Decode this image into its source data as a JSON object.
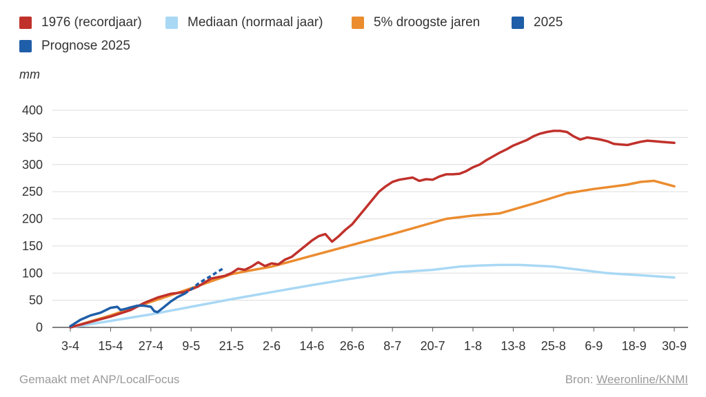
{
  "legend": [
    {
      "label": "1976 (recordjaar)",
      "color": "#c0312b"
    },
    {
      "label": "Mediaan (normaal jaar)",
      "color": "#a9d8f5"
    },
    {
      "label": "5% droogste jaren",
      "color": "#eb8c2f"
    },
    {
      "label": "2025",
      "color": "#1f5ea8"
    },
    {
      "label": "Prognose 2025",
      "color": "#1f5ea8"
    }
  ],
  "unit_label": "mm",
  "footer": {
    "made_with": "Gemaakt met ANP/LocalFocus",
    "source_prefix": "Bron:",
    "source_link": "Weeronline/KNMI"
  },
  "chart_data": {
    "type": "line",
    "title": "",
    "xlabel": "",
    "ylabel": "mm",
    "ylim": [
      0,
      400
    ],
    "yticks": [
      0,
      50,
      100,
      150,
      200,
      250,
      300,
      350,
      400
    ],
    "xlim": [
      0,
      180
    ],
    "xticks": [
      {
        "label": "3-4",
        "day": 0
      },
      {
        "label": "15-4",
        "day": 12
      },
      {
        "label": "27-4",
        "day": 24
      },
      {
        "label": "9-5",
        "day": 36
      },
      {
        "label": "21-5",
        "day": 48
      },
      {
        "label": "2-6",
        "day": 60
      },
      {
        "label": "14-6",
        "day": 72
      },
      {
        "label": "26-6",
        "day": 84
      },
      {
        "label": "8-7",
        "day": 96
      },
      {
        "label": "20-7",
        "day": 108
      },
      {
        "label": "1-8",
        "day": 120
      },
      {
        "label": "13-8",
        "day": 132
      },
      {
        "label": "25-8",
        "day": 144
      },
      {
        "label": "6-9",
        "day": 156
      },
      {
        "label": "18-9",
        "day": 168
      },
      {
        "label": "30-9",
        "day": 180
      }
    ],
    "series": [
      {
        "name": "Mediaan (normaal jaar)",
        "color": "#a9d8f5",
        "dash": false,
        "x": [
          0,
          12,
          24,
          36,
          48,
          60,
          72,
          84,
          96,
          108,
          116,
          122,
          128,
          134,
          144,
          152,
          160,
          170,
          180
        ],
        "y": [
          0,
          12,
          24,
          38,
          52,
          65,
          78,
          90,
          101,
          106,
          112,
          114,
          115,
          115,
          112,
          106,
          100,
          96,
          92
        ]
      },
      {
        "name": "5% droogste jaren",
        "color": "#eb8c2f",
        "dash": false,
        "x": [
          0,
          12,
          24,
          36,
          48,
          52,
          60,
          72,
          84,
          96,
          108,
          112,
          120,
          128,
          138,
          148,
          156,
          166,
          170,
          174,
          180
        ],
        "y": [
          0,
          22,
          47,
          72,
          98,
          103,
          112,
          132,
          152,
          172,
          193,
          200,
          206,
          210,
          228,
          247,
          255,
          263,
          268,
          270,
          260
        ]
      },
      {
        "name": "1976 (recordjaar)",
        "color": "#c0312b",
        "dash": false,
        "x": [
          0,
          6,
          12,
          18,
          22,
          26,
          30,
          34,
          38,
          42,
          46,
          48,
          50,
          52,
          54,
          56,
          58,
          60,
          62,
          64,
          66,
          68,
          70,
          72,
          74,
          76,
          78,
          80,
          82,
          84,
          86,
          88,
          90,
          92,
          94,
          96,
          98,
          100,
          102,
          104,
          106,
          108,
          110,
          112,
          114,
          116,
          118,
          120,
          122,
          124,
          126,
          128,
          130,
          132,
          134,
          136,
          138,
          140,
          142,
          144,
          146,
          148,
          150,
          152,
          154,
          156,
          158,
          160,
          162,
          164,
          166,
          168,
          170,
          172,
          174,
          176,
          178,
          180
        ],
        "y": [
          0,
          10,
          20,
          32,
          45,
          55,
          62,
          65,
          75,
          90,
          95,
          100,
          108,
          106,
          112,
          120,
          113,
          118,
          116,
          125,
          130,
          140,
          150,
          160,
          168,
          172,
          158,
          168,
          180,
          190,
          205,
          220,
          235,
          250,
          260,
          268,
          272,
          274,
          276,
          270,
          273,
          272,
          278,
          282,
          282,
          283,
          288,
          295,
          300,
          308,
          315,
          322,
          328,
          335,
          340,
          345,
          352,
          357,
          360,
          362,
          362,
          360,
          352,
          346,
          350,
          348,
          346,
          343,
          338,
          337,
          336,
          339,
          342,
          344,
          343,
          342,
          341,
          340
        ]
      },
      {
        "name": "2025",
        "color": "#1f5ea8",
        "dash": false,
        "x": [
          0,
          3,
          6,
          9,
          12,
          14,
          15,
          17,
          18,
          20,
          22,
          24,
          25,
          26,
          28,
          30,
          32,
          34
        ],
        "y": [
          2,
          14,
          22,
          27,
          36,
          38,
          32,
          35,
          37,
          40,
          40,
          38,
          30,
          28,
          38,
          48,
          56,
          62
        ]
      },
      {
        "name": "Prognose 2025",
        "color": "#1f5ea8",
        "dash": true,
        "x": [
          34,
          36,
          38,
          40,
          42,
          44,
          46
        ],
        "y": [
          62,
          70,
          80,
          88,
          95,
          103,
          110
        ]
      }
    ]
  }
}
